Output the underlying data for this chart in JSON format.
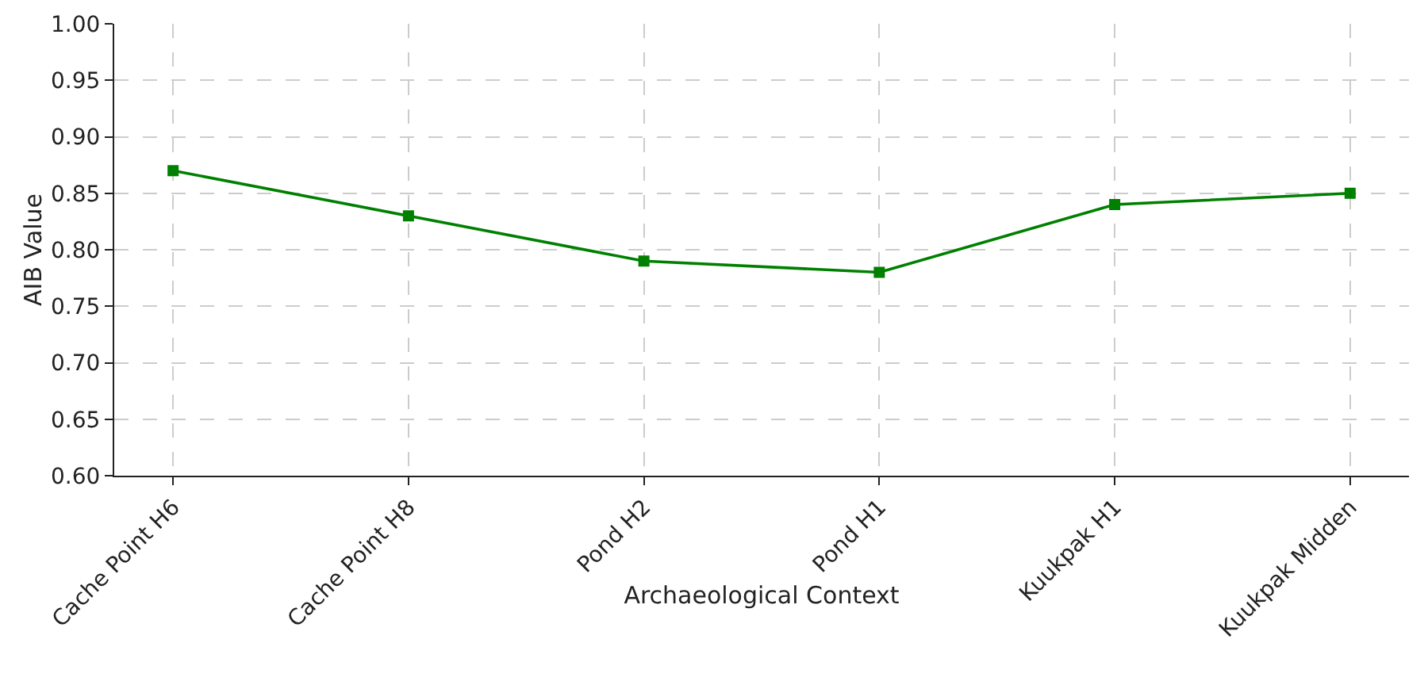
{
  "chart_data": {
    "type": "line",
    "xlabel": "Archaeological Context",
    "ylabel": "AIB Value",
    "categories": [
      "Cache Point H6",
      "Cache Point H8",
      "Pond H2",
      "Pond H1",
      "Kuukpak H1",
      "Kuukpak Midden"
    ],
    "series": [
      {
        "color": "#008000",
        "values": [
          0.87,
          0.83,
          0.79,
          0.78,
          0.84,
          0.85
        ]
      }
    ],
    "ylim": [
      0.6,
      1.0
    ],
    "yticks": [
      {
        "value": 0.6,
        "label": "0.60"
      },
      {
        "value": 0.65,
        "label": "0.65"
      },
      {
        "value": 0.7,
        "label": "0.70"
      },
      {
        "value": 0.75,
        "label": "0.75"
      },
      {
        "value": 0.8,
        "label": "0.80"
      },
      {
        "value": 0.85,
        "label": "0.85"
      },
      {
        "value": 0.9,
        "label": "0.90"
      },
      {
        "value": 0.95,
        "label": "0.95"
      },
      {
        "value": 1.0,
        "label": "1.00"
      }
    ],
    "grid": true,
    "marker": "square",
    "line_style": "solid"
  }
}
